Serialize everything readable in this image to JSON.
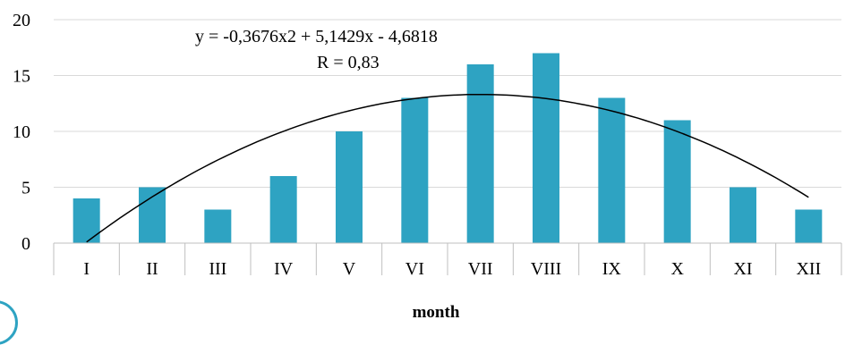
{
  "chart_data": {
    "type": "bar",
    "categories": [
      "I",
      "II",
      "III",
      "IV",
      "V",
      "VI",
      "VII",
      "VIII",
      "IX",
      "X",
      "XI",
      "XII"
    ],
    "values": [
      4,
      5,
      3,
      6,
      10,
      13,
      16,
      17,
      13,
      11,
      5,
      3
    ],
    "xlabel": "month",
    "ylabel": "",
    "ylim": [
      0,
      20
    ],
    "yticks": [
      0,
      5,
      10,
      15,
      20
    ],
    "grid": true,
    "bar_color": "#2ea3c2",
    "trendline": {
      "type": "polynomial",
      "coefficients": {
        "a": -0.3676,
        "b": 5.1429,
        "c": -4.6818
      },
      "equation_label": "y = -0,3676x2 + 5,1429x - 4,6818",
      "r_label": "R = 0,83"
    }
  }
}
